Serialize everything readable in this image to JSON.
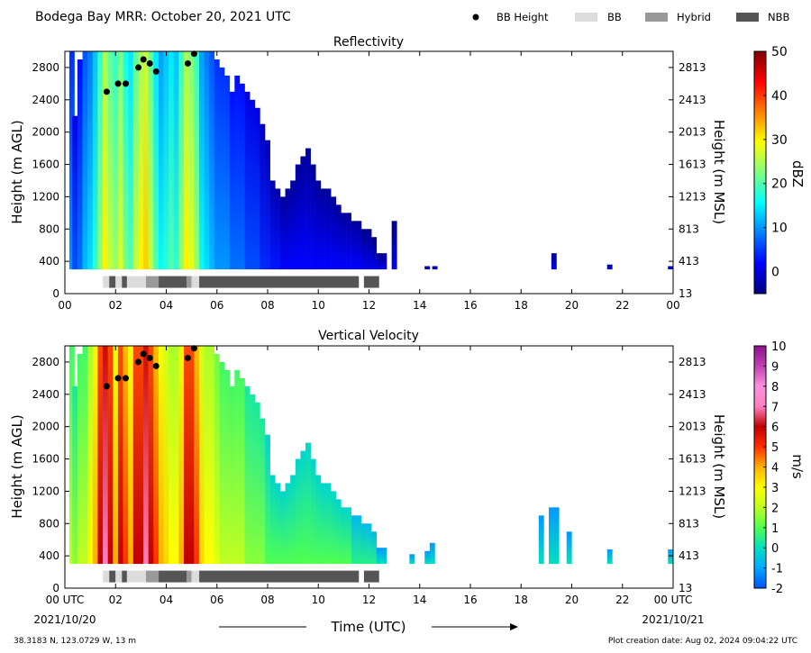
{
  "header": {
    "title": "Bodega Bay MRR:  October 20, 2021 UTC",
    "legend": [
      {
        "label": "BB Height",
        "kind": "dot",
        "color": "#000000"
      },
      {
        "label": "BB",
        "kind": "box",
        "color": "#dcdcdc"
      },
      {
        "label": "Hybrid",
        "kind": "box",
        "color": "#999999"
      },
      {
        "label": "NBB",
        "kind": "box",
        "color": "#555555"
      }
    ]
  },
  "footer": {
    "location": "38.3183 N, 123.0729 W, 13 m",
    "created": "Plot creation date: Aug 02, 2024 09:04:22 UTC",
    "time_label": "Time (UTC)",
    "start_date": "2021/10/20",
    "end_date": "2021/10/21"
  },
  "chart_data": [
    {
      "type": "heatmap",
      "title": "Reflectivity",
      "ylabel": "Height (m AGL)",
      "ylabel_right": "Height (m MSL)",
      "xlim": [
        0,
        24
      ],
      "ylim": [
        0,
        3000
      ],
      "xticks": [
        "00",
        "02",
        "04",
        "06",
        "08",
        "10",
        "12",
        "14",
        "16",
        "18",
        "20",
        "22",
        "00"
      ],
      "yticks": [
        0,
        400,
        800,
        1200,
        1600,
        2000,
        2400,
        2800
      ],
      "yticks_right": [
        "13",
        "413",
        "813",
        "1213",
        "1613",
        "2013",
        "2413",
        "2813"
      ],
      "colorbar": {
        "label": "dBZ",
        "min": -5,
        "max": 50,
        "ticks": [
          "0",
          "10",
          "20",
          "30",
          "40",
          "50"
        ],
        "tick_values": [
          0,
          10,
          20,
          30,
          40,
          50
        ],
        "stops": [
          "#00007f",
          "#0000ff",
          "#007fff",
          "#00ffff",
          "#7fff7f",
          "#ffff00",
          "#ff7f00",
          "#ff0000",
          "#7f0000"
        ]
      },
      "columns": [
        {
          "t": 0.28,
          "top": 3000,
          "v": 10
        },
        {
          "t": 0.4,
          "top": 2200,
          "v": 6
        },
        {
          "t": 0.6,
          "top": 2900,
          "v": 8
        },
        {
          "t": 0.8,
          "top": 3000,
          "v": 12
        },
        {
          "t": 1.0,
          "top": 3000,
          "v": 14
        },
        {
          "t": 1.2,
          "top": 3000,
          "v": 18
        },
        {
          "t": 1.4,
          "top": 3000,
          "v": 24
        },
        {
          "t": 1.6,
          "top": 3000,
          "v": 30
        },
        {
          "t": 1.8,
          "top": 3000,
          "v": 26
        },
        {
          "t": 2.0,
          "top": 3000,
          "v": 24
        },
        {
          "t": 2.2,
          "top": 3000,
          "v": 28
        },
        {
          "t": 2.4,
          "top": 3000,
          "v": 22
        },
        {
          "t": 2.6,
          "top": 3000,
          "v": 20
        },
        {
          "t": 2.8,
          "top": 3000,
          "v": 26
        },
        {
          "t": 3.0,
          "top": 3000,
          "v": 30
        },
        {
          "t": 3.2,
          "top": 3000,
          "v": 32
        },
        {
          "t": 3.4,
          "top": 3000,
          "v": 26
        },
        {
          "t": 3.6,
          "top": 3000,
          "v": 20
        },
        {
          "t": 3.8,
          "top": 3000,
          "v": 16
        },
        {
          "t": 4.0,
          "top": 3000,
          "v": 18
        },
        {
          "t": 4.2,
          "top": 3000,
          "v": 20
        },
        {
          "t": 4.4,
          "top": 3000,
          "v": 18
        },
        {
          "t": 4.6,
          "top": 3000,
          "v": 24
        },
        {
          "t": 4.8,
          "top": 3000,
          "v": 30
        },
        {
          "t": 5.0,
          "top": 3000,
          "v": 28
        },
        {
          "t": 5.2,
          "top": 3000,
          "v": 24
        },
        {
          "t": 5.4,
          "top": 3000,
          "v": 16
        },
        {
          "t": 5.6,
          "top": 3000,
          "v": 14
        },
        {
          "t": 5.8,
          "top": 3000,
          "v": 12
        },
        {
          "t": 6.0,
          "top": 2900,
          "v": 10
        },
        {
          "t": 6.2,
          "top": 2800,
          "v": 10
        },
        {
          "t": 6.4,
          "top": 2700,
          "v": 10
        },
        {
          "t": 6.6,
          "top": 2500,
          "v": 8
        },
        {
          "t": 6.8,
          "top": 2700,
          "v": 8
        },
        {
          "t": 7.0,
          "top": 2600,
          "v": 8
        },
        {
          "t": 7.2,
          "top": 2500,
          "v": 6
        },
        {
          "t": 7.4,
          "top": 2400,
          "v": 6
        },
        {
          "t": 7.6,
          "top": 2300,
          "v": 6
        },
        {
          "t": 7.8,
          "top": 2100,
          "v": 4
        },
        {
          "t": 8.0,
          "top": 1900,
          "v": 4
        },
        {
          "t": 8.2,
          "top": 1400,
          "v": 3
        },
        {
          "t": 8.4,
          "top": 1300,
          "v": 3
        },
        {
          "t": 8.6,
          "top": 1200,
          "v": 2
        },
        {
          "t": 8.8,
          "top": 1300,
          "v": 2
        },
        {
          "t": 9.0,
          "top": 1400,
          "v": 2
        },
        {
          "t": 9.2,
          "top": 1600,
          "v": 2
        },
        {
          "t": 9.4,
          "top": 1700,
          "v": 2
        },
        {
          "t": 9.6,
          "top": 1800,
          "v": 2
        },
        {
          "t": 9.8,
          "top": 1600,
          "v": 2
        },
        {
          "t": 10.0,
          "top": 1400,
          "v": 2
        },
        {
          "t": 10.2,
          "top": 1300,
          "v": 2
        },
        {
          "t": 10.4,
          "top": 1300,
          "v": 2
        },
        {
          "t": 10.6,
          "top": 1200,
          "v": 2
        },
        {
          "t": 10.8,
          "top": 1100,
          "v": 2
        },
        {
          "t": 11.0,
          "top": 1000,
          "v": 2
        },
        {
          "t": 11.2,
          "top": 1000,
          "v": 2
        },
        {
          "t": 11.4,
          "top": 900,
          "v": 2
        },
        {
          "t": 11.6,
          "top": 900,
          "v": 2
        },
        {
          "t": 11.8,
          "top": 800,
          "v": 1
        },
        {
          "t": 12.0,
          "top": 800,
          "v": 1
        },
        {
          "t": 12.2,
          "top": 700,
          "v": 1
        },
        {
          "t": 12.4,
          "top": 500,
          "v": 1
        },
        {
          "t": 12.6,
          "top": 500,
          "v": 1
        },
        {
          "t": 13.0,
          "top": 900,
          "v": 1
        },
        {
          "t": 14.3,
          "top": 340,
          "v": 0
        },
        {
          "t": 14.6,
          "top": 340,
          "v": 0
        },
        {
          "t": 19.3,
          "top": 500,
          "v": 1
        },
        {
          "t": 21.5,
          "top": 360,
          "v": 1
        },
        {
          "t": 23.9,
          "top": 340,
          "v": 1
        }
      ],
      "bb_height": {
        "t": [
          1.65,
          2.1,
          2.4,
          2.9,
          3.1,
          3.35,
          3.6,
          4.85,
          5.1
        ],
        "h": [
          2500,
          2600,
          2600,
          2800,
          2900,
          2850,
          2750,
          2850,
          2970
        ]
      },
      "bb_type_bar": [
        {
          "t0": 1.5,
          "t1": 1.75,
          "type": "BB"
        },
        {
          "t0": 1.75,
          "t1": 2.0,
          "type": "NBB"
        },
        {
          "t0": 2.0,
          "t1": 2.25,
          "type": "BB"
        },
        {
          "t0": 2.25,
          "t1": 2.45,
          "type": "NBB"
        },
        {
          "t0": 2.45,
          "t1": 3.2,
          "type": "BB"
        },
        {
          "t0": 3.2,
          "t1": 3.7,
          "type": "Hybrid"
        },
        {
          "t0": 3.7,
          "t1": 4.8,
          "type": "NBB"
        },
        {
          "t0": 4.8,
          "t1": 5.0,
          "type": "Hybrid"
        },
        {
          "t0": 5.0,
          "t1": 5.3,
          "type": "BB"
        },
        {
          "t0": 5.3,
          "t1": 11.6,
          "type": "NBB"
        },
        {
          "t0": 11.8,
          "t1": 12.4,
          "type": "NBB"
        }
      ]
    },
    {
      "type": "heatmap",
      "title": "Vertical Velocity",
      "ylabel": "Height (m AGL)",
      "ylabel_right": "Height (m MSL)",
      "xlim": [
        0,
        24
      ],
      "ylim": [
        0,
        3000
      ],
      "xticks": [
        "00 UTC",
        "02",
        "04",
        "06",
        "08",
        "10",
        "12",
        "14",
        "16",
        "18",
        "20",
        "22",
        "00 UTC"
      ],
      "yticks": [
        0,
        400,
        800,
        1200,
        1600,
        2000,
        2400,
        2800
      ],
      "yticks_right": [
        "13",
        "413",
        "813",
        "1213",
        "1613",
        "2013",
        "2413",
        "2813"
      ],
      "colorbar": {
        "label": "m/s",
        "min": -2,
        "max": 10,
        "ticks": [
          "-2",
          "-1",
          "0",
          "1",
          "2",
          "3",
          "4",
          "5",
          "6",
          "7",
          "8",
          "9",
          "10"
        ],
        "tick_values": [
          -2,
          -1,
          0,
          1,
          2,
          3,
          4,
          5,
          6,
          7,
          8,
          9,
          10
        ],
        "stops": [
          "#0050ff",
          "#00aaff",
          "#00e0c0",
          "#50ff50",
          "#c0ff20",
          "#ffff00",
          "#ffb000",
          "#ff3000",
          "#c00000",
          "#ff80c0",
          "#ff90e0",
          "#c040b0",
          "#901090"
        ]
      },
      "columns": [
        {
          "t": 0.28,
          "top": 3000,
          "v": 2
        },
        {
          "t": 0.4,
          "top": 2500,
          "v": 1.5
        },
        {
          "t": 0.6,
          "top": 2900,
          "v": 2
        },
        {
          "t": 0.8,
          "top": 3000,
          "v": 2
        },
        {
          "t": 1.0,
          "top": 3000,
          "v": 3
        },
        {
          "t": 1.2,
          "top": 3000,
          "v": 4
        },
        {
          "t": 1.4,
          "top": 3000,
          "v": 6
        },
        {
          "t": 1.6,
          "top": 3000,
          "v": 7
        },
        {
          "t": 1.8,
          "top": 3000,
          "v": 6
        },
        {
          "t": 2.0,
          "top": 3000,
          "v": 4
        },
        {
          "t": 2.2,
          "top": 3000,
          "v": 6
        },
        {
          "t": 2.4,
          "top": 3000,
          "v": 5
        },
        {
          "t": 2.6,
          "top": 3000,
          "v": 4
        },
        {
          "t": 2.8,
          "top": 3000,
          "v": 6
        },
        {
          "t": 3.0,
          "top": 3000,
          "v": 6
        },
        {
          "t": 3.2,
          "top": 3000,
          "v": 7
        },
        {
          "t": 3.4,
          "top": 3000,
          "v": 6
        },
        {
          "t": 3.6,
          "top": 3000,
          "v": 5
        },
        {
          "t": 3.8,
          "top": 3000,
          "v": 4
        },
        {
          "t": 4.0,
          "top": 3000,
          "v": 3.5
        },
        {
          "t": 4.2,
          "top": 3000,
          "v": 3
        },
        {
          "t": 4.4,
          "top": 3000,
          "v": 3
        },
        {
          "t": 4.6,
          "top": 3000,
          "v": 4
        },
        {
          "t": 4.8,
          "top": 3000,
          "v": 6
        },
        {
          "t": 5.0,
          "top": 3000,
          "v": 6
        },
        {
          "t": 5.2,
          "top": 3000,
          "v": 5
        },
        {
          "t": 5.4,
          "top": 3000,
          "v": 3.5
        },
        {
          "t": 5.6,
          "top": 3000,
          "v": 3
        },
        {
          "t": 5.8,
          "top": 3000,
          "v": 3
        },
        {
          "t": 6.0,
          "top": 2900,
          "v": 2.5
        },
        {
          "t": 6.2,
          "top": 2800,
          "v": 2
        },
        {
          "t": 6.4,
          "top": 2700,
          "v": 2
        },
        {
          "t": 6.6,
          "top": 2500,
          "v": 2
        },
        {
          "t": 6.8,
          "top": 2700,
          "v": 2
        },
        {
          "t": 7.0,
          "top": 2600,
          "v": 2
        },
        {
          "t": 7.2,
          "top": 2500,
          "v": 1.5
        },
        {
          "t": 7.4,
          "top": 2400,
          "v": 1.5
        },
        {
          "t": 7.6,
          "top": 2300,
          "v": 1.5
        },
        {
          "t": 7.8,
          "top": 2100,
          "v": 1.5
        },
        {
          "t": 8.0,
          "top": 1900,
          "v": 1
        },
        {
          "t": 8.2,
          "top": 1400,
          "v": 1
        },
        {
          "t": 8.4,
          "top": 1300,
          "v": 1
        },
        {
          "t": 8.6,
          "top": 1200,
          "v": 1
        },
        {
          "t": 8.8,
          "top": 1300,
          "v": 1
        },
        {
          "t": 9.0,
          "top": 1400,
          "v": 1
        },
        {
          "t": 9.2,
          "top": 1600,
          "v": 1
        },
        {
          "t": 9.4,
          "top": 1700,
          "v": 1
        },
        {
          "t": 9.6,
          "top": 1800,
          "v": 1
        },
        {
          "t": 9.8,
          "top": 1600,
          "v": 1
        },
        {
          "t": 10.0,
          "top": 1400,
          "v": 1
        },
        {
          "t": 10.2,
          "top": 1300,
          "v": 1
        },
        {
          "t": 10.4,
          "top": 1300,
          "v": 1
        },
        {
          "t": 10.6,
          "top": 1200,
          "v": 1
        },
        {
          "t": 10.8,
          "top": 1100,
          "v": 1
        },
        {
          "t": 11.0,
          "top": 1000,
          "v": 1
        },
        {
          "t": 11.2,
          "top": 1000,
          "v": 1
        },
        {
          "t": 11.4,
          "top": 900,
          "v": 0.5
        },
        {
          "t": 11.6,
          "top": 900,
          "v": 0.5
        },
        {
          "t": 11.8,
          "top": 800,
          "v": 0.5
        },
        {
          "t": 12.0,
          "top": 800,
          "v": 0.5
        },
        {
          "t": 12.2,
          "top": 700,
          "v": 0.5
        },
        {
          "t": 12.4,
          "top": 500,
          "v": 0
        },
        {
          "t": 12.6,
          "top": 500,
          "v": 0
        },
        {
          "t": 13.7,
          "top": 420,
          "v": 0
        },
        {
          "t": 14.3,
          "top": 460,
          "v": 0
        },
        {
          "t": 14.5,
          "top": 560,
          "v": 0
        },
        {
          "t": 18.8,
          "top": 900,
          "v": 0
        },
        {
          "t": 19.2,
          "top": 1000,
          "v": 0
        },
        {
          "t": 19.4,
          "top": 1000,
          "v": 0
        },
        {
          "t": 19.9,
          "top": 700,
          "v": 0
        },
        {
          "t": 21.5,
          "top": 480,
          "v": 0
        },
        {
          "t": 23.9,
          "top": 480,
          "v": 0
        }
      ],
      "bb_height": {
        "t": [
          1.65,
          2.1,
          2.4,
          2.9,
          3.1,
          3.35,
          3.6,
          4.85,
          5.1
        ],
        "h": [
          2500,
          2600,
          2600,
          2800,
          2900,
          2850,
          2750,
          2850,
          2970
        ]
      },
      "bb_type_bar": [
        {
          "t0": 1.5,
          "t1": 1.75,
          "type": "BB"
        },
        {
          "t0": 1.75,
          "t1": 2.0,
          "type": "NBB"
        },
        {
          "t0": 2.0,
          "t1": 2.25,
          "type": "BB"
        },
        {
          "t0": 2.25,
          "t1": 2.45,
          "type": "NBB"
        },
        {
          "t0": 2.45,
          "t1": 3.2,
          "type": "BB"
        },
        {
          "t0": 3.2,
          "t1": 3.7,
          "type": "Hybrid"
        },
        {
          "t0": 3.7,
          "t1": 4.8,
          "type": "NBB"
        },
        {
          "t0": 4.8,
          "t1": 5.0,
          "type": "Hybrid"
        },
        {
          "t0": 5.0,
          "t1": 5.3,
          "type": "BB"
        },
        {
          "t0": 5.3,
          "t1": 11.6,
          "type": "NBB"
        },
        {
          "t0": 11.8,
          "t1": 12.4,
          "type": "NBB"
        }
      ]
    }
  ]
}
